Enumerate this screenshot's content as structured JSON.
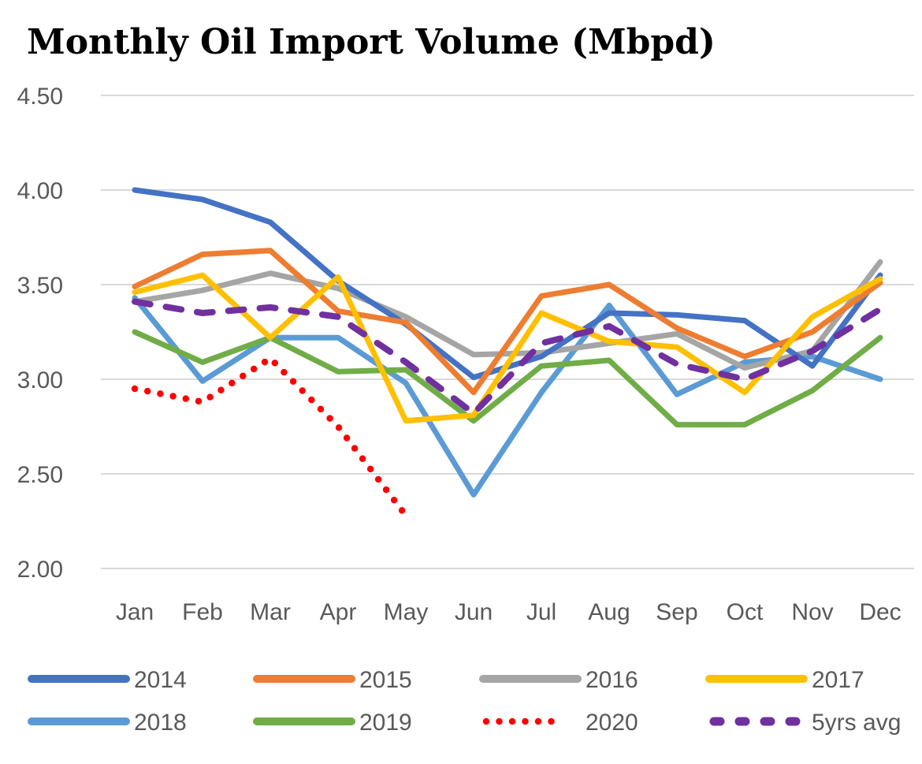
{
  "chart_data": {
    "type": "line",
    "title": "Monthly Oil Import Volume (Mbpd)",
    "xlabel": "",
    "ylabel": "",
    "ylim": [
      2.0,
      4.5
    ],
    "yticks": [
      "2.00",
      "2.50",
      "3.00",
      "3.50",
      "4.00",
      "4.50"
    ],
    "ytick_values": [
      2.0,
      2.5,
      3.0,
      3.5,
      4.0,
      4.5
    ],
    "grid": true,
    "legend_position": "bottom",
    "categories": [
      "Jan",
      "Feb",
      "Mar",
      "Apr",
      "May",
      "Jun",
      "Jul",
      "Aug",
      "Sep",
      "Oct",
      "Nov",
      "Dec"
    ],
    "series": [
      {
        "name": "2014",
        "color": "#4472C4",
        "style": "solid",
        "values": [
          4.0,
          3.95,
          3.83,
          3.52,
          3.29,
          3.01,
          3.12,
          3.35,
          3.34,
          3.31,
          3.07,
          3.55
        ]
      },
      {
        "name": "2015",
        "color": "#ED7D31",
        "style": "solid",
        "values": [
          3.49,
          3.66,
          3.68,
          3.36,
          3.3,
          2.93,
          3.44,
          3.5,
          3.27,
          3.12,
          3.25,
          3.51
        ]
      },
      {
        "name": "2016",
        "color": "#A5A5A5",
        "style": "solid",
        "values": [
          3.41,
          3.47,
          3.56,
          3.48,
          3.33,
          3.13,
          3.14,
          3.19,
          3.24,
          3.06,
          3.15,
          3.62
        ]
      },
      {
        "name": "2017",
        "color": "#FFC000",
        "style": "solid",
        "values": [
          3.46,
          3.55,
          3.22,
          3.54,
          2.78,
          2.81,
          3.35,
          3.2,
          3.17,
          2.93,
          3.33,
          3.53
        ]
      },
      {
        "name": "2018",
        "color": "#5B9BD5",
        "style": "solid",
        "values": [
          3.43,
          2.99,
          3.22,
          3.22,
          2.98,
          2.39,
          2.93,
          3.39,
          2.92,
          3.09,
          3.12,
          3.0
        ]
      },
      {
        "name": "2019",
        "color": "#70AD47",
        "style": "solid",
        "values": [
          3.25,
          3.09,
          3.22,
          3.04,
          3.05,
          2.78,
          3.07,
          3.1,
          2.76,
          2.76,
          2.94,
          3.22
        ]
      },
      {
        "name": "2020",
        "color": "#FF0000",
        "style": "dotted",
        "values": [
          2.95,
          2.88,
          3.11,
          2.75,
          2.28,
          null,
          null,
          null,
          null,
          null,
          null,
          null
        ]
      },
      {
        "name": "5yrs avg",
        "color": "#7030A0",
        "style": "dashed",
        "values": [
          3.41,
          3.35,
          3.38,
          3.33,
          3.09,
          2.82,
          3.19,
          3.28,
          3.08,
          3.0,
          3.15,
          3.37
        ]
      }
    ]
  }
}
